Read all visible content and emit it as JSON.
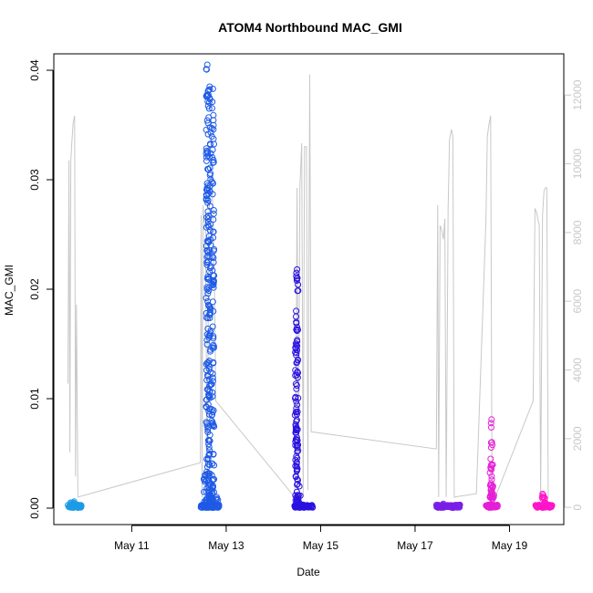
{
  "chart_data": {
    "type": "scatter",
    "title": "ATOM4 Northbound MAC_GMI",
    "xlabel": "Date",
    "ylabel": "MAC_GMI",
    "x_ticks": [
      "May 11",
      "May 13",
      "May 15",
      "May 17",
      "May 19"
    ],
    "x_tick_days": [
      11,
      13,
      15,
      17,
      19
    ],
    "xlim": [
      9.35,
      20.15
    ],
    "y_left_ticks": [
      "0.00",
      "0.01",
      "0.02",
      "0.03",
      "0.04"
    ],
    "y_left_values": [
      0,
      0.01,
      0.02,
      0.03,
      0.04
    ],
    "ylim_left": [
      -0.0015,
      0.0415
    ],
    "y_right_ticks": [
      "0",
      "2000",
      "4000",
      "6000",
      "8000",
      "10000",
      "12000"
    ],
    "y_right_values": [
      0,
      2000,
      4000,
      6000,
      8000,
      10000,
      12000
    ],
    "ylim_right": [
      -500,
      13200
    ],
    "grid": false,
    "colors": {
      "right_series": "#c8c8c8",
      "cluster_1": "#1e9be6",
      "cluster_2": "#1e5ae6",
      "cluster_3": "#2a12e0",
      "cluster_4": "#7a1ee6",
      "cluster_5": "#e61ed6",
      "cluster_6": "#ff14c8"
    },
    "clusters": [
      {
        "x_range": [
          9.65,
          9.95
        ],
        "base": 5e-05,
        "spikes": [
          [
            9.72,
            0.0005
          ],
          [
            9.78,
            0.0006
          ],
          [
            9.85,
            0.0003
          ]
        ]
      },
      {
        "x_range": [
          12.45,
          12.85
        ],
        "base": 5e-05,
        "spikes": [
          [
            12.6,
            0.0405
          ],
          [
            12.65,
            0.0385
          ],
          [
            12.72,
            0.0383
          ],
          [
            12.55,
            0.003
          ],
          [
            12.8,
            0.001
          ]
        ]
      },
      {
        "x_range": [
          14.45,
          14.85
        ],
        "base": 5e-05,
        "spikes": [
          [
            14.5,
            0.0218
          ],
          [
            14.48,
            0.0175
          ],
          [
            14.55,
            0.002
          ]
        ]
      },
      {
        "x_range": [
          17.45,
          17.95
        ],
        "base": 5e-05,
        "spikes": [
          [
            17.6,
            0.0004
          ],
          [
            17.8,
            0.0002
          ]
        ]
      },
      {
        "x_range": [
          18.5,
          18.75
        ],
        "base": 5e-05,
        "spikes": [
          [
            18.62,
            0.0081
          ],
          [
            18.6,
            0.0045
          ],
          [
            18.65,
            0.002
          ]
        ]
      },
      {
        "x_range": [
          19.55,
          19.9
        ],
        "base": 5e-05,
        "spikes": [
          [
            19.7,
            0.0013
          ],
          [
            19.75,
            0.0009
          ]
        ]
      }
    ],
    "right_series": [
      [
        9.65,
        3600
      ],
      [
        9.67,
        10100
      ],
      [
        9.69,
        1600
      ],
      [
        9.71,
        10100
      ],
      [
        9.73,
        10600
      ],
      [
        9.76,
        11200
      ],
      [
        9.79,
        11400
      ],
      [
        9.81,
        900
      ],
      [
        9.83,
        5900
      ],
      [
        9.86,
        300
      ],
      [
        12.45,
        1300
      ],
      [
        12.47,
        8500
      ],
      [
        12.49,
        300
      ],
      [
        12.51,
        8800
      ],
      [
        12.53,
        8300
      ],
      [
        12.56,
        8400
      ],
      [
        12.6,
        300
      ],
      [
        12.63,
        8200
      ],
      [
        12.66,
        9500
      ],
      [
        12.7,
        9700
      ],
      [
        12.75,
        6700
      ],
      [
        12.78,
        3100
      ],
      [
        14.45,
        300
      ],
      [
        14.48,
        3500
      ],
      [
        14.5,
        9300
      ],
      [
        14.53,
        400
      ],
      [
        14.56,
        9300
      ],
      [
        14.6,
        10600
      ],
      [
        14.63,
        300
      ],
      [
        14.66,
        10500
      ],
      [
        14.7,
        10500
      ],
      [
        14.73,
        500
      ],
      [
        14.77,
        12600
      ],
      [
        14.8,
        2200
      ],
      [
        17.45,
        1700
      ],
      [
        17.48,
        8800
      ],
      [
        17.5,
        300
      ],
      [
        17.53,
        8200
      ],
      [
        17.56,
        8100
      ],
      [
        17.6,
        7800
      ],
      [
        17.63,
        8400
      ],
      [
        17.66,
        300
      ],
      [
        17.7,
        8700
      ],
      [
        17.73,
        10700
      ],
      [
        17.77,
        11000
      ],
      [
        17.8,
        10800
      ],
      [
        17.83,
        300
      ],
      [
        18.3,
        400
      ],
      [
        18.5,
        8300
      ],
      [
        18.53,
        10800
      ],
      [
        18.56,
        11100
      ],
      [
        18.6,
        11400
      ],
      [
        18.63,
        400
      ],
      [
        18.7,
        300
      ],
      [
        19.5,
        3100
      ],
      [
        19.54,
        8700
      ],
      [
        19.57,
        8600
      ],
      [
        19.6,
        8400
      ],
      [
        19.63,
        8200
      ],
      [
        19.66,
        300
      ],
      [
        19.7,
        8500
      ],
      [
        19.73,
        9200
      ],
      [
        19.76,
        9300
      ],
      [
        19.79,
        9300
      ],
      [
        19.82,
        300
      ]
    ]
  }
}
